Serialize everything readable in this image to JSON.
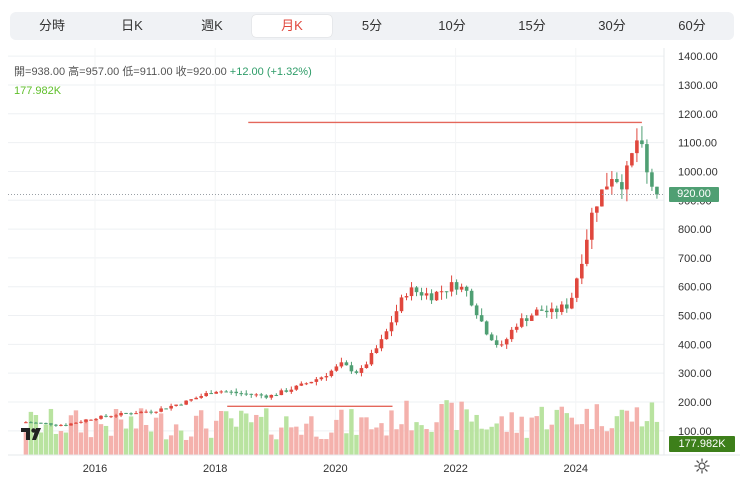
{
  "tabs": [
    {
      "label": "分時",
      "active": false
    },
    {
      "label": "日K",
      "active": false
    },
    {
      "label": "週K",
      "active": false
    },
    {
      "label": "月K",
      "active": true
    },
    {
      "label": "5分",
      "active": false
    },
    {
      "label": "10分",
      "active": false
    },
    {
      "label": "15分",
      "active": false
    },
    {
      "label": "30分",
      "active": false
    },
    {
      "label": "60分",
      "active": false
    }
  ],
  "ohlc": {
    "open_label": "開=",
    "open": "938.00",
    "high_label": "高=",
    "high": "957.00",
    "low_label": "低=",
    "low": "911.00",
    "close_label": "收=",
    "close": "920.00",
    "change": "+12.00",
    "change_pct": "(+1.32%)"
  },
  "volume_legend": "177.982K",
  "price_tag": "920.00",
  "volume_tag": "177.982K",
  "colors": {
    "up": "#e0473d",
    "down": "#4f9f73",
    "vol_up": "#f4b1ac",
    "vol_down": "#b9e3a0",
    "line": "#e4675b"
  },
  "chart_data": {
    "type": "candlestick",
    "period": "monthly",
    "y_axis": {
      "ticks": [
        "100.00",
        "200.00",
        "300.00",
        "400.00",
        "500.00",
        "600.00",
        "700.00",
        "800.00",
        "900.00",
        "1000.00",
        "1100.00",
        "1200.00",
        "1300.00",
        "1400.00"
      ],
      "range": [
        40,
        1400
      ]
    },
    "x_axis": {
      "ticks": [
        "2016",
        "2018",
        "2020",
        "2022",
        "2024"
      ],
      "range_years": [
        2014.8,
        2025.4
      ]
    },
    "current_price": 920,
    "horizontal_lines": [
      {
        "price": 1170,
        "from_year": 2018.55,
        "to_year": 2025.1
      },
      {
        "price": 185,
        "from_year": 2018.2,
        "to_year": 2020.95
      }
    ],
    "anchors": [
      [
        2014.85,
        130
      ],
      [
        2015.5,
        120
      ],
      [
        2016.0,
        145
      ],
      [
        2016.5,
        160
      ],
      [
        2017.0,
        170
      ],
      [
        2017.5,
        200
      ],
      [
        2018.0,
        240
      ],
      [
        2018.4,
        230
      ],
      [
        2018.9,
        220
      ],
      [
        2019.4,
        255
      ],
      [
        2019.8,
        290
      ],
      [
        2020.1,
        330
      ],
      [
        2020.4,
        300
      ],
      [
        2020.8,
        420
      ],
      [
        2021.0,
        510
      ],
      [
        2021.2,
        590
      ],
      [
        2021.6,
        570
      ],
      [
        2022.0,
        610
      ],
      [
        2022.2,
        580
      ],
      [
        2022.5,
        450
      ],
      [
        2022.75,
        385
      ],
      [
        2023.0,
        470
      ],
      [
        2023.4,
        520
      ],
      [
        2023.6,
        510
      ],
      [
        2023.9,
        540
      ],
      [
        2024.1,
        700
      ],
      [
        2024.3,
        880
      ],
      [
        2024.6,
        990
      ],
      [
        2024.8,
        960
      ],
      [
        2025.05,
        1130
      ],
      [
        2025.15,
        1000
      ],
      [
        2025.35,
        920
      ]
    ],
    "volume_tag_value": "177.982K"
  }
}
